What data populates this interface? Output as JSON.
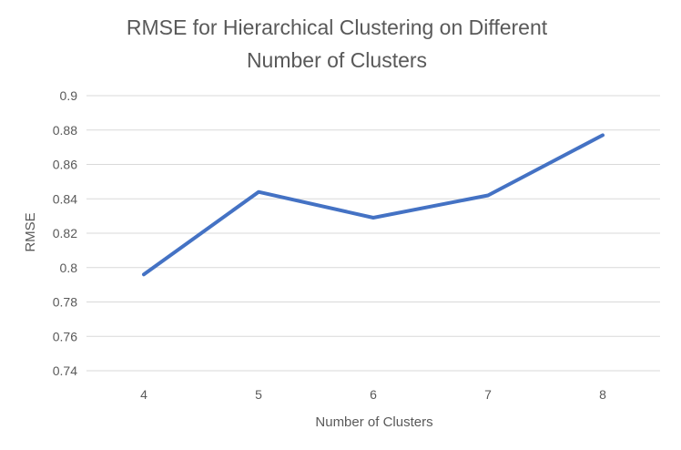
{
  "chart_data": {
    "type": "line",
    "title": [
      "RMSE  for Hierarchical Clustering on Different",
      "Number of Clusters"
    ],
    "xlabel": "Number of Clusters",
    "ylabel": "RMSE",
    "categories": [
      "4",
      "5",
      "6",
      "7",
      "8"
    ],
    "series": [
      {
        "values": [
          0.796,
          0.844,
          0.829,
          0.842,
          0.877
        ]
      }
    ],
    "ylim": [
      0.74,
      0.9
    ],
    "yticks": [
      0.9,
      0.88,
      0.86,
      0.84,
      0.82,
      0.8,
      0.78,
      0.76,
      0.74
    ],
    "ytick_labels": [
      "0.9",
      "0.88",
      "0.86",
      "0.84",
      "0.82",
      "0.8",
      "0.78",
      "0.76",
      "0.74"
    ],
    "grid": true,
    "legend": "none",
    "colors": {
      "series": "#4472c4",
      "grid": "#d9d9d9",
      "text": "#595959"
    }
  }
}
